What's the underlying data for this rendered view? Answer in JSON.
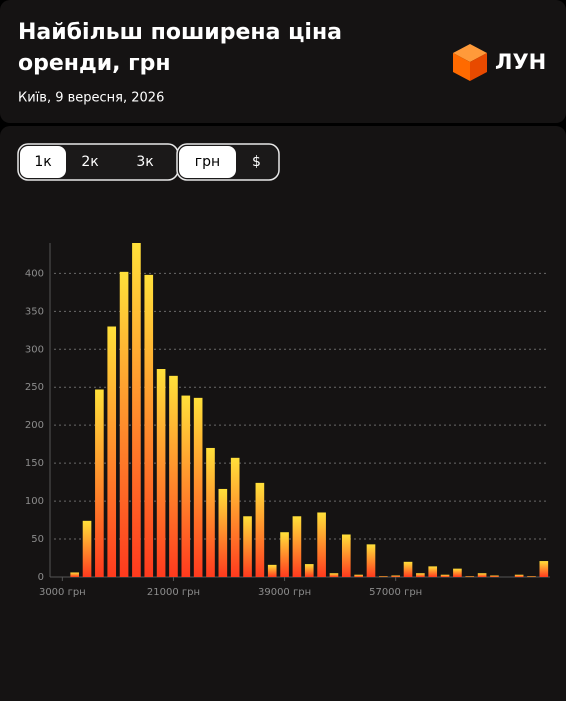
{
  "header": {
    "title_lines": [
      "Найбільш поширена ціна",
      "оренди, грн"
    ],
    "subtitle": "Київ, 9 вересня, 2026",
    "logo": "ЛУН"
  },
  "controls": {
    "rooms": [
      "1к",
      "2к",
      "3к"
    ],
    "rooms_selected": 0,
    "currency": [
      "грн",
      "$"
    ],
    "currency_selected": 0
  },
  "chart_data": {
    "type": "histogram",
    "bins": [
      4000,
      6000,
      8000,
      10000,
      12000,
      14000,
      16000,
      18000,
      20000,
      22000,
      24000,
      26000,
      28000,
      30000,
      32000,
      34000,
      36000,
      38000,
      40000,
      42000,
      44000,
      46000,
      48000,
      50000,
      52000,
      54000,
      56000,
      58000,
      60000,
      62000,
      64000,
      66000,
      68000,
      70000,
      72000,
      74000,
      76000,
      78000,
      80000,
      82000
    ],
    "values": [
      6,
      74,
      247,
      330,
      402,
      440,
      398,
      274,
      265,
      239,
      236,
      170,
      116,
      157,
      80,
      124,
      16,
      59,
      80,
      17,
      85,
      5,
      56,
      3,
      43,
      1,
      2,
      20,
      5,
      14,
      3,
      11,
      1,
      5,
      2,
      0,
      3,
      1,
      21
    ],
    "colors": [
      "#ffe03a",
      "#ff3a1e"
    ],
    "xlim": [
      1000,
      82000
    ],
    "xticks": [
      {
        "value": 3000,
        "label": "3000 грн"
      },
      {
        "value": 21000,
        "label": "21000 грн"
      },
      {
        "value": 39000,
        "label": "39000 грн"
      },
      {
        "value": 57000,
        "label": "57000 грн"
      }
    ],
    "ylim": [
      0,
      440
    ],
    "yticks": [
      0,
      50,
      100,
      150,
      200,
      250,
      300,
      350,
      400
    ],
    "grid": true
  }
}
